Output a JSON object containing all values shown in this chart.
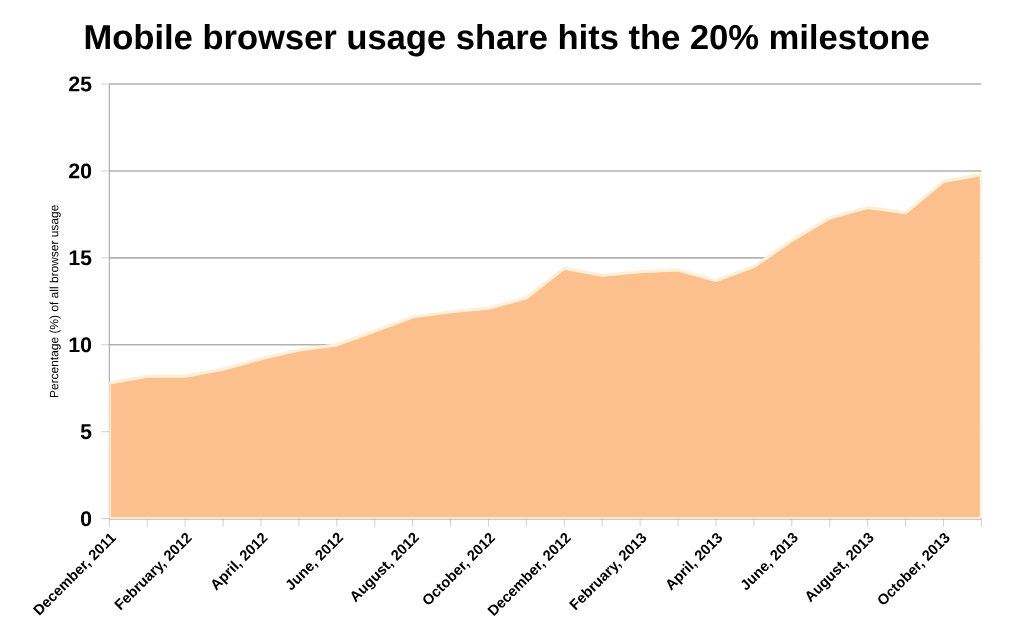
{
  "chart_data": {
    "type": "area",
    "title": "Mobile browser usage share hits the 20% milestone",
    "ylabel": "Percentage (%) of all browser usage",
    "categories": [
      "December, 2011",
      null,
      "February, 2012",
      null,
      "April, 2012",
      null,
      "June, 2012",
      null,
      "August, 2012",
      null,
      "October, 2012",
      null,
      "December, 2012",
      null,
      "February, 2013",
      null,
      "April, 2013",
      null,
      "June, 2013",
      null,
      "August, 2013",
      null,
      "October, 2013",
      null
    ],
    "values": [
      7.8,
      8.2,
      8.2,
      8.6,
      9.2,
      9.7,
      10.0,
      10.8,
      11.6,
      11.9,
      12.1,
      12.7,
      14.4,
      14.0,
      14.2,
      14.3,
      13.7,
      14.5,
      16.0,
      17.3,
      17.9,
      17.6,
      19.4,
      19.8
    ],
    "color": "#fcc08e",
    "ylim": [
      0,
      25
    ],
    "yticks": [
      0,
      5,
      10,
      15,
      20,
      25
    ],
    "grid": "y"
  }
}
